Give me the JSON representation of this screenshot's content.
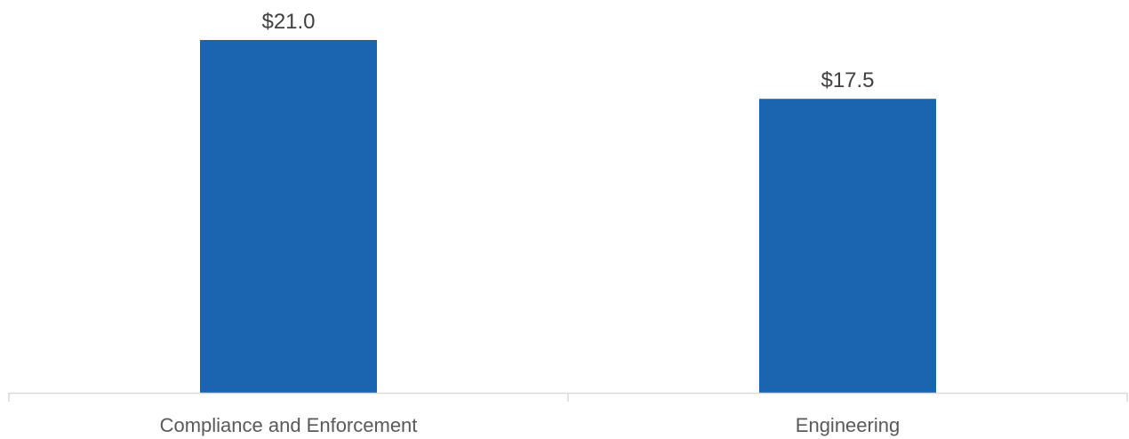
{
  "chart_data": {
    "type": "bar",
    "categories": [
      "Compliance and Enforcement",
      "Engineering"
    ],
    "values": [
      21.0,
      17.5
    ],
    "value_labels": [
      "$21.0",
      "$17.5"
    ],
    "ylim": [
      0,
      21.0
    ],
    "grid": false,
    "legend": "none",
    "bar_color": "#1A64B0",
    "axis_color": "#D9D9D9",
    "label_color": "#404040",
    "tick_label_color": "#595959"
  }
}
